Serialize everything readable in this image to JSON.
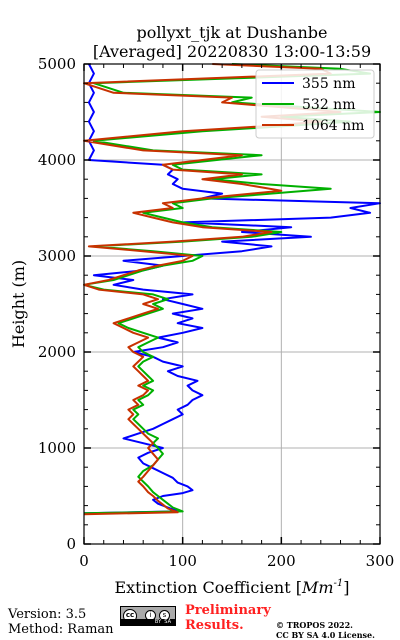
{
  "chart_data": {
    "type": "line",
    "title": "pollyxt_tjk at Dushanbe",
    "subtitle": "[Averaged] 20220830 13:00-13:59",
    "xlabel_main": "Extinction Coefficient [",
    "xlabel_unit": "Mm",
    "xlabel_sup": "-1",
    "xlabel_close": "]",
    "ylabel": "Height (m)",
    "xlim": [
      0,
      300
    ],
    "ylim": [
      0,
      5000
    ],
    "x_ticks": [
      0,
      100,
      200,
      300
    ],
    "y_ticks": [
      0,
      1000,
      2000,
      3000,
      4000,
      5000
    ],
    "grid": true,
    "legend_position": "top-right",
    "series": [
      {
        "name": "355 nm",
        "color": "#0000ff",
        "points": [
          [
            0,
            320
          ],
          [
            95,
            340
          ],
          [
            85,
            380
          ],
          [
            75,
            420
          ],
          [
            70,
            460
          ],
          [
            80,
            500
          ],
          [
            100,
            530
          ],
          [
            110,
            560
          ],
          [
            105,
            600
          ],
          [
            95,
            640
          ],
          [
            90,
            690
          ],
          [
            80,
            740
          ],
          [
            70,
            790
          ],
          [
            60,
            840
          ],
          [
            55,
            900
          ],
          [
            65,
            950
          ],
          [
            80,
            1000
          ],
          [
            60,
            1050
          ],
          [
            40,
            1100
          ],
          [
            55,
            1150
          ],
          [
            70,
            1200
          ],
          [
            80,
            1250
          ],
          [
            90,
            1300
          ],
          [
            100,
            1350
          ],
          [
            95,
            1400
          ],
          [
            105,
            1450
          ],
          [
            110,
            1500
          ],
          [
            120,
            1550
          ],
          [
            110,
            1600
          ],
          [
            105,
            1650
          ],
          [
            115,
            1700
          ],
          [
            95,
            1750
          ],
          [
            85,
            1800
          ],
          [
            100,
            1850
          ],
          [
            80,
            1900
          ],
          [
            70,
            1950
          ],
          [
            50,
            2000
          ],
          [
            80,
            2050
          ],
          [
            95,
            2100
          ],
          [
            75,
            2150
          ],
          [
            100,
            2200
          ],
          [
            120,
            2250
          ],
          [
            95,
            2300
          ],
          [
            110,
            2350
          ],
          [
            90,
            2400
          ],
          [
            120,
            2450
          ],
          [
            100,
            2500
          ],
          [
            80,
            2550
          ],
          [
            110,
            2600
          ],
          [
            60,
            2650
          ],
          [
            30,
            2700
          ],
          [
            50,
            2750
          ],
          [
            10,
            2800
          ],
          [
            60,
            2850
          ],
          [
            80,
            2900
          ],
          [
            40,
            2950
          ],
          [
            100,
            3000
          ],
          [
            160,
            3050
          ],
          [
            190,
            3100
          ],
          [
            140,
            3150
          ],
          [
            230,
            3200
          ],
          [
            160,
            3250
          ],
          [
            210,
            3300
          ],
          [
            100,
            3350
          ],
          [
            250,
            3400
          ],
          [
            290,
            3450
          ],
          [
            270,
            3500
          ],
          [
            300,
            3550
          ],
          [
            120,
            3600
          ],
          [
            140,
            3650
          ],
          [
            100,
            3700
          ],
          [
            90,
            3750
          ],
          [
            95,
            3800
          ],
          [
            85,
            3850
          ],
          [
            90,
            3900
          ],
          [
            80,
            3950
          ],
          [
            5,
            4000
          ],
          [
            10,
            4100
          ],
          [
            5,
            4200
          ],
          [
            10,
            4300
          ],
          [
            5,
            4400
          ],
          [
            10,
            4500
          ],
          [
            5,
            4600
          ],
          [
            10,
            4700
          ],
          [
            5,
            4800
          ],
          [
            10,
            4900
          ],
          [
            5,
            5000
          ]
        ]
      },
      {
        "name": "532 nm",
        "color": "#00b000",
        "points": [
          [
            0,
            320
          ],
          [
            100,
            340
          ],
          [
            90,
            380
          ],
          [
            85,
            420
          ],
          [
            80,
            460
          ],
          [
            75,
            500
          ],
          [
            70,
            540
          ],
          [
            65,
            600
          ],
          [
            60,
            650
          ],
          [
            55,
            700
          ],
          [
            60,
            760
          ],
          [
            70,
            820
          ],
          [
            75,
            880
          ],
          [
            80,
            940
          ],
          [
            75,
            1000
          ],
          [
            70,
            1050
          ],
          [
            75,
            1100
          ],
          [
            65,
            1150
          ],
          [
            60,
            1200
          ],
          [
            55,
            1250
          ],
          [
            50,
            1300
          ],
          [
            55,
            1350
          ],
          [
            50,
            1400
          ],
          [
            60,
            1450
          ],
          [
            55,
            1500
          ],
          [
            65,
            1550
          ],
          [
            70,
            1600
          ],
          [
            60,
            1650
          ],
          [
            70,
            1700
          ],
          [
            65,
            1750
          ],
          [
            60,
            1800
          ],
          [
            55,
            1850
          ],
          [
            60,
            1900
          ],
          [
            70,
            1950
          ],
          [
            60,
            2000
          ],
          [
            55,
            2050
          ],
          [
            65,
            2100
          ],
          [
            75,
            2150
          ],
          [
            60,
            2200
          ],
          [
            45,
            2250
          ],
          [
            35,
            2300
          ],
          [
            50,
            2350
          ],
          [
            65,
            2400
          ],
          [
            80,
            2450
          ],
          [
            70,
            2500
          ],
          [
            85,
            2550
          ],
          [
            70,
            2600
          ],
          [
            20,
            2650
          ],
          [
            0,
            2700
          ],
          [
            30,
            2750
          ],
          [
            45,
            2800
          ],
          [
            60,
            2850
          ],
          [
            80,
            2900
          ],
          [
            110,
            2950
          ],
          [
            120,
            3000
          ],
          [
            70,
            3050
          ],
          [
            10,
            3100
          ],
          [
            100,
            3150
          ],
          [
            170,
            3200
          ],
          [
            200,
            3250
          ],
          [
            130,
            3300
          ],
          [
            100,
            3350
          ],
          [
            80,
            3400
          ],
          [
            60,
            3450
          ],
          [
            100,
            3500
          ],
          [
            90,
            3550
          ],
          [
            130,
            3600
          ],
          [
            250,
            3700
          ],
          [
            180,
            3750
          ],
          [
            130,
            3800
          ],
          [
            180,
            3850
          ],
          [
            100,
            3900
          ],
          [
            90,
            3950
          ],
          [
            180,
            4050
          ],
          [
            70,
            4100
          ],
          [
            10,
            4200
          ],
          [
            120,
            4300
          ],
          [
            200,
            4350
          ],
          [
            270,
            4400
          ],
          [
            200,
            4450
          ],
          [
            300,
            4500
          ],
          [
            150,
            4600
          ],
          [
            170,
            4650
          ],
          [
            40,
            4700
          ],
          [
            10,
            4800
          ],
          [
            290,
            4900
          ],
          [
            260,
            4950
          ],
          [
            150,
            5000
          ]
        ]
      },
      {
        "name": "1064 nm",
        "color": "#c83200",
        "points": [
          [
            0,
            310
          ],
          [
            95,
            330
          ],
          [
            85,
            370
          ],
          [
            80,
            410
          ],
          [
            75,
            450
          ],
          [
            70,
            500
          ],
          [
            65,
            540
          ],
          [
            60,
            600
          ],
          [
            55,
            650
          ],
          [
            60,
            700
          ],
          [
            65,
            760
          ],
          [
            70,
            820
          ],
          [
            75,
            880
          ],
          [
            70,
            940
          ],
          [
            65,
            1000
          ],
          [
            70,
            1050
          ],
          [
            65,
            1100
          ],
          [
            60,
            1150
          ],
          [
            55,
            1200
          ],
          [
            50,
            1250
          ],
          [
            45,
            1300
          ],
          [
            50,
            1350
          ],
          [
            45,
            1400
          ],
          [
            55,
            1450
          ],
          [
            50,
            1500
          ],
          [
            60,
            1550
          ],
          [
            65,
            1600
          ],
          [
            55,
            1650
          ],
          [
            65,
            1700
          ],
          [
            60,
            1750
          ],
          [
            55,
            1800
          ],
          [
            50,
            1850
          ],
          [
            55,
            1900
          ],
          [
            60,
            1950
          ],
          [
            50,
            2000
          ],
          [
            45,
            2050
          ],
          [
            55,
            2100
          ],
          [
            65,
            2150
          ],
          [
            50,
            2200
          ],
          [
            40,
            2250
          ],
          [
            30,
            2300
          ],
          [
            45,
            2350
          ],
          [
            60,
            2400
          ],
          [
            75,
            2450
          ],
          [
            60,
            2500
          ],
          [
            75,
            2550
          ],
          [
            60,
            2600
          ],
          [
            15,
            2650
          ],
          [
            0,
            2700
          ],
          [
            25,
            2750
          ],
          [
            40,
            2800
          ],
          [
            55,
            2850
          ],
          [
            75,
            2900
          ],
          [
            100,
            2950
          ],
          [
            110,
            3000
          ],
          [
            60,
            3050
          ],
          [
            5,
            3100
          ],
          [
            90,
            3150
          ],
          [
            160,
            3200
          ],
          [
            190,
            3250
          ],
          [
            120,
            3300
          ],
          [
            90,
            3350
          ],
          [
            70,
            3400
          ],
          [
            50,
            3450
          ],
          [
            90,
            3500
          ],
          [
            80,
            3550
          ],
          [
            120,
            3600
          ],
          [
            200,
            3680
          ],
          [
            160,
            3750
          ],
          [
            120,
            3800
          ],
          [
            160,
            3850
          ],
          [
            90,
            3900
          ],
          [
            80,
            3950
          ],
          [
            160,
            4050
          ],
          [
            60,
            4100
          ],
          [
            0,
            4200
          ],
          [
            100,
            4300
          ],
          [
            180,
            4350
          ],
          [
            240,
            4400
          ],
          [
            180,
            4450
          ],
          [
            260,
            4500
          ],
          [
            140,
            4600
          ],
          [
            150,
            4650
          ],
          [
            30,
            4700
          ],
          [
            0,
            4800
          ],
          [
            250,
            4900
          ],
          [
            240,
            4950
          ],
          [
            130,
            5000
          ]
        ]
      }
    ]
  },
  "footer": {
    "version": "Version: 3.5",
    "method": "Method: Raman",
    "preliminary_line1": "Preliminary",
    "preliminary_line2": "Results.",
    "copyright_line1": "© TROPOS 2022.",
    "copyright_line2": "CC BY SA 4.0 License."
  }
}
